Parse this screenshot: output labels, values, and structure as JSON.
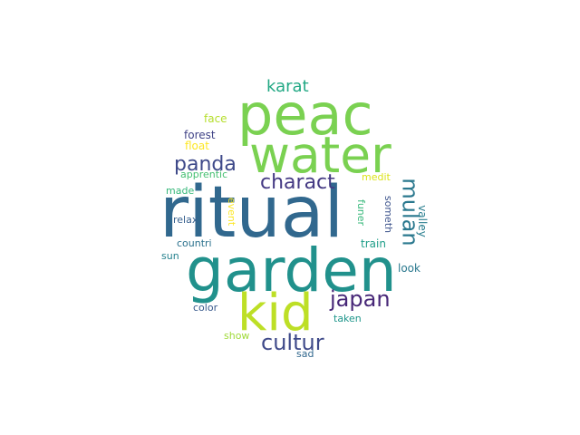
{
  "words": [
    {
      "text": "ritual",
      "color": "#31688e",
      "vertical": false
    },
    {
      "text": "garden",
      "color": "#21918c",
      "vertical": false
    },
    {
      "text": "peac",
      "color": "#7ad151",
      "vertical": false
    },
    {
      "text": "water",
      "color": "#7ad151",
      "vertical": false
    },
    {
      "text": "kid",
      "color": "#bddf26",
      "vertical": false
    },
    {
      "text": "japan",
      "color": "#482878",
      "vertical": false
    },
    {
      "text": "cultur",
      "color": "#3e4989",
      "vertical": false
    },
    {
      "text": "panda",
      "color": "#3e4989",
      "vertical": false
    },
    {
      "text": "charact",
      "color": "#443983",
      "vertical": false
    },
    {
      "text": "mulan",
      "color": "#2a788e",
      "vertical": true
    },
    {
      "text": "karat",
      "color": "#22a884",
      "vertical": false
    },
    {
      "text": "face",
      "color": "#b5de2b",
      "vertical": false
    },
    {
      "text": "forest",
      "color": "#414487",
      "vertical": false
    },
    {
      "text": "float",
      "color": "#fde725",
      "vertical": false
    },
    {
      "text": "apprentic",
      "color": "#44bf70",
      "vertical": false
    },
    {
      "text": "made",
      "color": "#35b779",
      "vertical": false
    },
    {
      "text": "event",
      "color": "#fde725",
      "vertical": true
    },
    {
      "text": "relax",
      "color": "#355f8d",
      "vertical": false
    },
    {
      "text": "medit",
      "color": "#dce319",
      "vertical": false
    },
    {
      "text": "funer",
      "color": "#35b779",
      "vertical": true
    },
    {
      "text": "someth",
      "color": "#3b528b",
      "vertical": true
    },
    {
      "text": "valley",
      "color": "#287d8e",
      "vertical": true
    },
    {
      "text": "countri",
      "color": "#2c728e",
      "vertical": false
    },
    {
      "text": "train",
      "color": "#1f9e89",
      "vertical": false
    },
    {
      "text": "sun",
      "color": "#26828e",
      "vertical": false
    },
    {
      "text": "look",
      "color": "#2a788e",
      "vertical": false
    },
    {
      "text": "color",
      "color": "#38598c",
      "vertical": false
    },
    {
      "text": "taken",
      "color": "#1f968b",
      "vertical": false
    },
    {
      "text": "show",
      "color": "#a0da39",
      "vertical": false
    },
    {
      "text": "sad",
      "color": "#31688e",
      "vertical": false
    }
  ]
}
